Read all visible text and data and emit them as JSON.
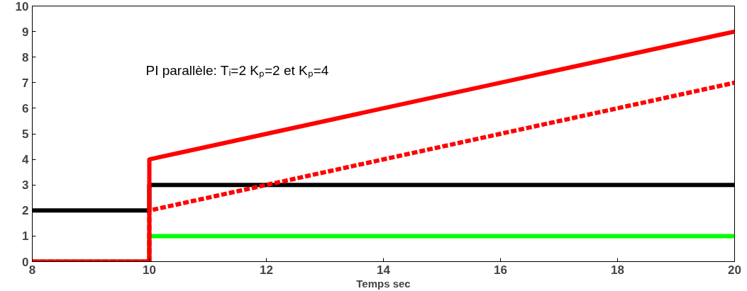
{
  "chart_data": {
    "type": "line",
    "xlabel": "Temps sec",
    "annotations": [
      "PI parallèle: Tᵢ=2 Kₚ=2 et Kₚ=4"
    ],
    "xlim": [
      8,
      20
    ],
    "xticks": [
      8,
      10,
      12,
      14,
      16,
      18,
      20
    ],
    "ylim": [
      0,
      10
    ],
    "yticks": [
      0,
      1,
      2,
      3,
      4,
      5,
      6,
      7,
      8,
      9,
      10
    ],
    "grid": false,
    "marker": "none",
    "series": [
      {
        "color": "#00ff00",
        "x": [
          8,
          10,
          10,
          20
        ],
        "values": [
          0,
          0,
          1,
          1
        ],
        "line_style": "solid"
      },
      {
        "color": "#000000",
        "x": [
          8,
          10,
          10,
          20
        ],
        "values": [
          2,
          2,
          3,
          3
        ],
        "line_style": "solid"
      },
      {
        "color": "#ff0000",
        "x": [
          8,
          10,
          10,
          20
        ],
        "values": [
          0,
          0,
          4,
          9
        ],
        "line_style": "solid"
      },
      {
        "color": "#ff0000",
        "x": [
          8,
          10,
          10,
          20
        ],
        "values": [
          0,
          0,
          2,
          7
        ],
        "line_style": "dashed"
      }
    ]
  }
}
